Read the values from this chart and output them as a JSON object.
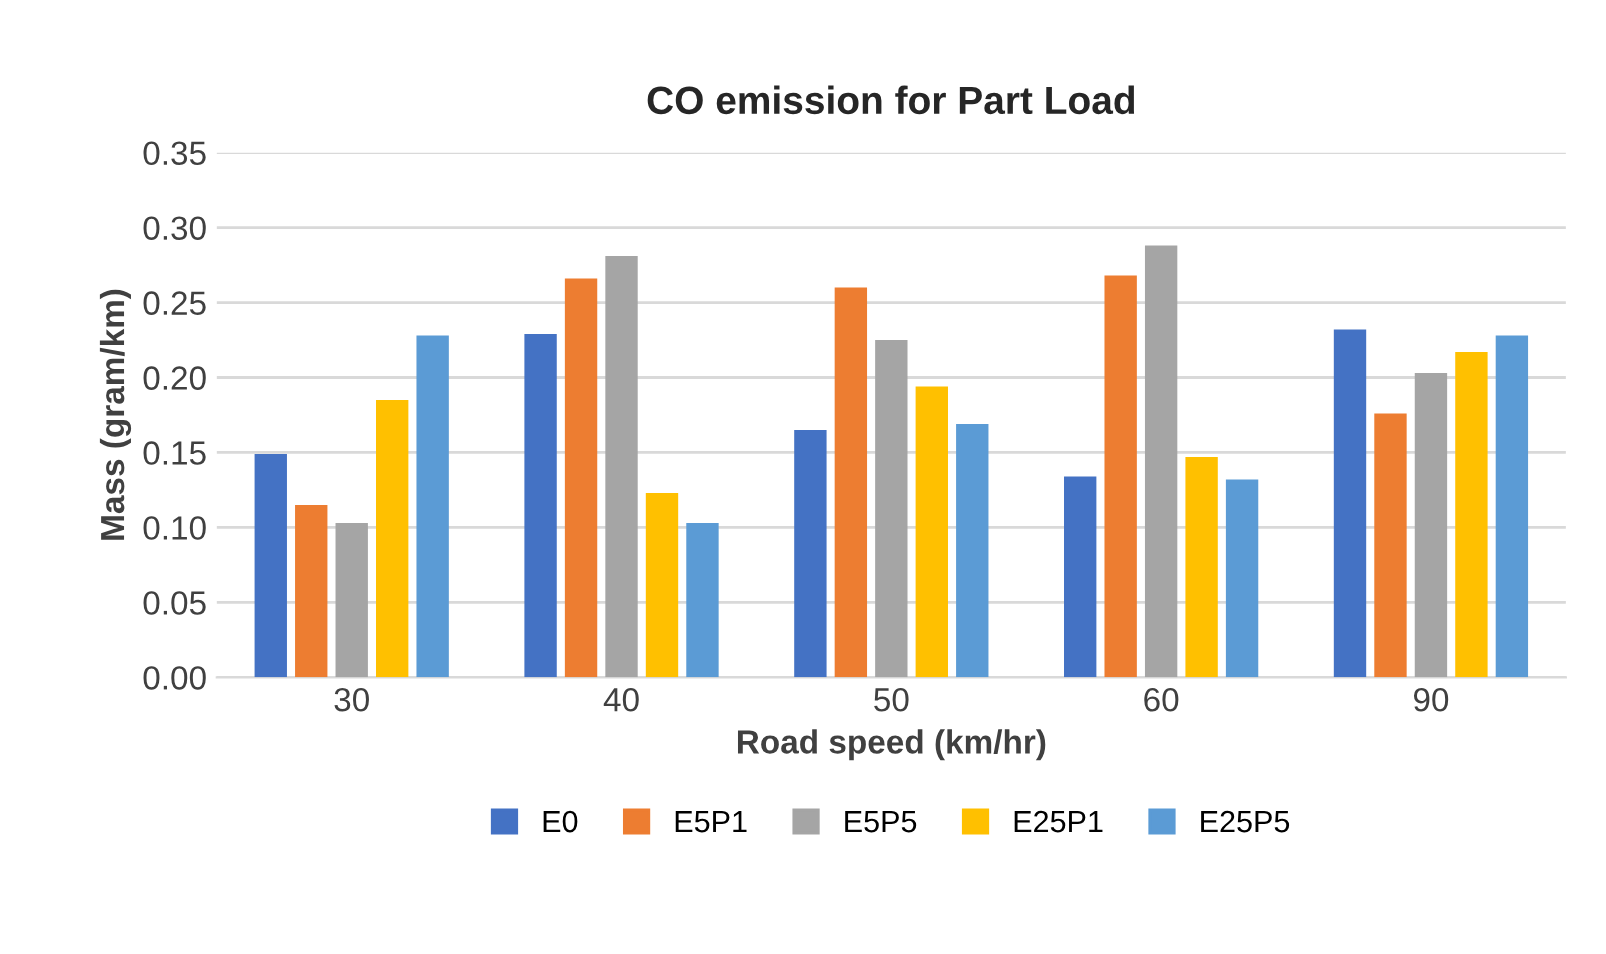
{
  "chart_data": {
    "type": "bar",
    "title": "CO emission for Part Load",
    "xlabel": "Road speed (km/hr)",
    "ylabel": "Mass (gram/km)",
    "categories": [
      "30",
      "40",
      "50",
      "60",
      "90"
    ],
    "series": [
      {
        "name": "E0",
        "color": "#4472c4",
        "values": [
          0.149,
          0.229,
          0.165,
          0.134,
          0.232
        ]
      },
      {
        "name": "E5P1",
        "color": "#ed7d31",
        "values": [
          0.115,
          0.266,
          0.26,
          0.268,
          0.176
        ]
      },
      {
        "name": "E5P5",
        "color": "#a5a5a5",
        "values": [
          0.103,
          0.281,
          0.225,
          0.288,
          0.203
        ]
      },
      {
        "name": "E25P1",
        "color": "#ffc000",
        "values": [
          0.185,
          0.123,
          0.194,
          0.147,
          0.217
        ]
      },
      {
        "name": "E25P5",
        "color": "#5b9bd5",
        "values": [
          0.228,
          0.103,
          0.169,
          0.132,
          0.228
        ]
      }
    ],
    "ylim": [
      0,
      0.35
    ],
    "yticks": [
      {
        "value": 0,
        "label": "0.00"
      },
      {
        "value": 0.05,
        "label": "0.05"
      },
      {
        "value": 0.1,
        "label": "0.10"
      },
      {
        "value": 0.15,
        "label": "0.15"
      },
      {
        "value": 0.2,
        "label": "0.20"
      },
      {
        "value": 0.25,
        "label": "0.25"
      },
      {
        "value": 0.3,
        "label": "0.30"
      },
      {
        "value": 0.35,
        "label": "0.35"
      }
    ],
    "grid": "y",
    "legend": "bottom"
  }
}
